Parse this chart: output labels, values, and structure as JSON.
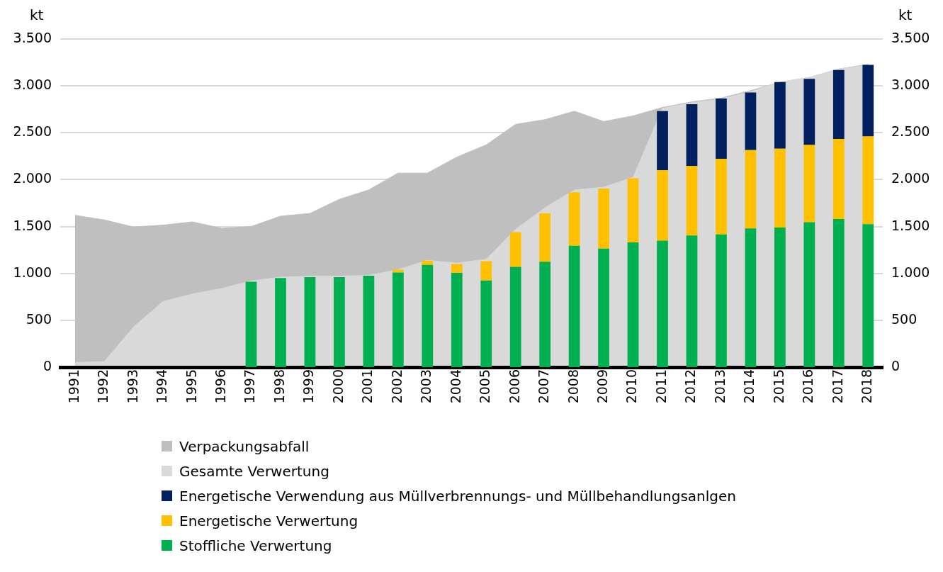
{
  "chart_data": [
    {
      "type": "area",
      "tick_labels": "y",
      "ylabel": "kt",
      "y2label": "kt",
      "categories": [
        "1991",
        "1992",
        "1993",
        "1994",
        "1995",
        "1996",
        "1997",
        "1998",
        "1999",
        "2000",
        "2001",
        "2002",
        "2003",
        "2004",
        "2005",
        "2006",
        "2007",
        "2008",
        "2009",
        "2010",
        "2011",
        "2012",
        "2013",
        "2014",
        "2015",
        "2016",
        "2017",
        "2018"
      ],
      "series": [
        {
          "name": "Verpackungsabfall",
          "color": "#bfbfbf",
          "values": [
            1620,
            1570,
            1495,
            1515,
            1550,
            1480,
            1500,
            1610,
            1640,
            1790,
            1890,
            2070,
            2070,
            2240,
            2370,
            2590,
            2640,
            2730,
            2620,
            2680,
            2770,
            2830,
            2870,
            2950,
            3040,
            3090,
            3180,
            3230
          ]
        },
        {
          "name": "Gesamte Verwertung",
          "color": "#d9d9d9",
          "values": [
            50,
            60,
            430,
            700,
            780,
            840,
            920,
            960,
            970,
            970,
            980,
            1040,
            1140,
            1110,
            1150,
            1470,
            1700,
            1890,
            1920,
            2025,
            2760,
            2820,
            2860,
            2940,
            3040,
            3090,
            3180,
            3220
          ]
        }
      ],
      "ylim": [
        0,
        3500
      ],
      "yticks": [
        0,
        500,
        {
          "value": 1000,
          "label": "1.000"
        },
        {
          "value": 1500,
          "label": "1.500"
        },
        {
          "value": 2000,
          "label": "2.000"
        },
        {
          "value": 2500,
          "label": "2.500"
        },
        {
          "value": 3000,
          "label": "3.000"
        },
        {
          "value": 3500,
          "label": "3.500"
        }
      ],
      "y2lim": [
        0,
        3500
      ],
      "y2ticks": [
        0,
        500,
        {
          "value": 1000,
          "label": "1.000"
        },
        {
          "value": 1500,
          "label": "1.500"
        },
        {
          "value": 2000,
          "label": "2.000"
        },
        {
          "value": 2500,
          "label": "2.500"
        },
        {
          "value": 3000,
          "label": "3.000"
        },
        {
          "value": 3500,
          "label": "3.500"
        }
      ],
      "grid": "y",
      "legend": "bottom"
    },
    {
      "type": "bar",
      "stacked": true,
      "tick_labels": "x",
      "categories": [
        "1991",
        "1992",
        "1993",
        "1994",
        "1995",
        "1996",
        "1997",
        "1998",
        "1999",
        "2000",
        "2001",
        "2002",
        "2003",
        "2004",
        "2005",
        "2006",
        "2007",
        "2008",
        "2009",
        "2010",
        "2011",
        "2012",
        "2013",
        "2014",
        "2015",
        "2016",
        "2017",
        "2018"
      ],
      "series": [
        {
          "name": "Stoffliche Verwertung",
          "color": "#00b050",
          "values": [
            null,
            null,
            null,
            null,
            null,
            null,
            910,
            950,
            960,
            960,
            975,
            1010,
            1090,
            1005,
            925,
            1070,
            1125,
            1295,
            1265,
            1330,
            1350,
            1405,
            1415,
            1480,
            1490,
            1545,
            1580,
            1525
          ]
        },
        {
          "name": "Energetische Verwertung",
          "color": "#ffc000",
          "values": [
            null,
            null,
            null,
            null,
            null,
            null,
            null,
            null,
            null,
            null,
            null,
            30,
            45,
            95,
            205,
            370,
            515,
            570,
            640,
            685,
            750,
            740,
            805,
            835,
            840,
            825,
            855,
            935
          ]
        },
        {
          "name": "Energetische Verwendung aus Müllverbrennungs- und Müllbehandlungsanlgen",
          "color": "#002060",
          "values": [
            null,
            null,
            null,
            null,
            null,
            null,
            null,
            null,
            null,
            null,
            null,
            null,
            null,
            null,
            null,
            null,
            null,
            null,
            null,
            null,
            630,
            660,
            645,
            615,
            710,
            705,
            735,
            765
          ]
        }
      ],
      "ylim": [
        0,
        3500
      ],
      "legend": "bottom"
    }
  ]
}
